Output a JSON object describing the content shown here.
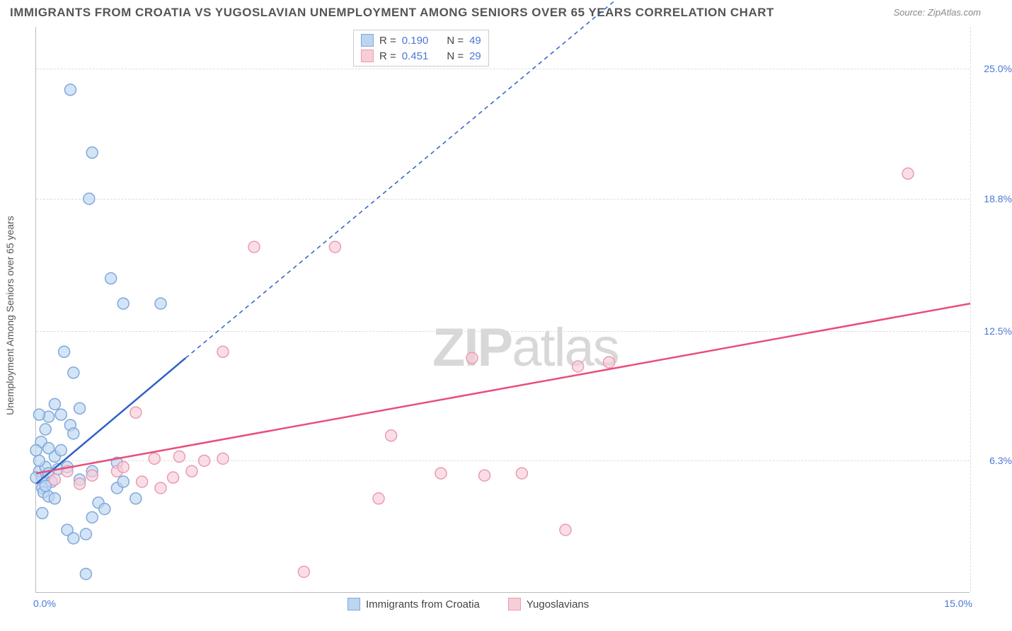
{
  "title": "IMMIGRANTS FROM CROATIA VS YUGOSLAVIAN UNEMPLOYMENT AMONG SENIORS OVER 65 YEARS CORRELATION CHART",
  "source": "Source: ZipAtlas.com",
  "watermark_bold": "ZIP",
  "watermark_light": "atlas",
  "ylabel": "Unemployment Among Seniors over 65 years",
  "chart": {
    "type": "scatter",
    "background_color": "#ffffff",
    "grid_color": "#dddddd",
    "axis_color": "#bbbbbb",
    "xlim": [
      0,
      15
    ],
    "ylim": [
      0,
      27
    ],
    "y_gridlines": [
      6.3,
      12.5,
      18.8,
      25.0
    ],
    "y_tick_labels": [
      "6.3%",
      "12.5%",
      "18.8%",
      "25.0%"
    ],
    "x_gridlines": [
      15.0
    ],
    "x_tick_labels": {
      "left": "0.0%",
      "right": "15.0%"
    },
    "marker_radius": 8,
    "marker_stroke_width": 1.5,
    "trend_solid_width": 2.5,
    "trend_dash_width": 1.5,
    "trend_dash_pattern": "6,5",
    "label_fontsize": 14,
    "tick_color": "#4a78d6"
  },
  "series": [
    {
      "name": "Immigrants from Croatia",
      "fill": "#bcd5f0",
      "stroke": "#7fa8dd",
      "trend_color": "#2f5fc9",
      "R": "0.190",
      "N": "49",
      "trend": {
        "x1": 0,
        "y1": 5.2,
        "x2_solid": 2.4,
        "y2_solid": 11.2,
        "x2_dash": 10.0,
        "y2_dash": 30.0
      },
      "points": [
        [
          0.05,
          5.8
        ],
        [
          0.1,
          5.5
        ],
        [
          0.15,
          6.0
        ],
        [
          0.1,
          5.0
        ],
        [
          0.2,
          5.7
        ],
        [
          0.12,
          4.8
        ],
        [
          0.3,
          6.5
        ],
        [
          0.08,
          7.2
        ],
        [
          0.05,
          6.3
        ],
        [
          0.25,
          5.3
        ],
        [
          0.2,
          4.6
        ],
        [
          0.0,
          5.5
        ],
        [
          0.35,
          5.9
        ],
        [
          0.4,
          8.5
        ],
        [
          0.55,
          8.0
        ],
        [
          0.6,
          7.6
        ],
        [
          0.7,
          8.8
        ],
        [
          0.6,
          10.5
        ],
        [
          0.45,
          11.5
        ],
        [
          0.85,
          18.8
        ],
        [
          0.55,
          24.0
        ],
        [
          0.9,
          21.0
        ],
        [
          1.2,
          15.0
        ],
        [
          1.4,
          13.8
        ],
        [
          2.0,
          13.8
        ],
        [
          0.3,
          9.0
        ],
        [
          0.4,
          6.8
        ],
        [
          0.15,
          7.8
        ],
        [
          0.2,
          8.4
        ],
        [
          0.5,
          6.0
        ],
        [
          0.7,
          5.4
        ],
        [
          0.9,
          5.8
        ],
        [
          1.0,
          4.3
        ],
        [
          1.1,
          4.0
        ],
        [
          1.3,
          6.2
        ],
        [
          1.3,
          5.0
        ],
        [
          1.4,
          5.3
        ],
        [
          0.5,
          3.0
        ],
        [
          0.6,
          2.6
        ],
        [
          0.8,
          2.8
        ],
        [
          0.8,
          0.9
        ],
        [
          0.9,
          3.6
        ],
        [
          0.3,
          4.5
        ],
        [
          1.6,
          4.5
        ],
        [
          0.1,
          3.8
        ],
        [
          0.0,
          6.8
        ],
        [
          0.05,
          8.5
        ],
        [
          0.2,
          6.9
        ],
        [
          0.15,
          5.1
        ]
      ]
    },
    {
      "name": "Yugoslavians",
      "fill": "#f7cdd8",
      "stroke": "#ea9bb1",
      "trend_color": "#e84f7a",
      "R": "0.451",
      "N": "29",
      "trend": {
        "x1": 0,
        "y1": 5.7,
        "x2_solid": 15.0,
        "y2_solid": 13.8,
        "x2_dash": 15.0,
        "y2_dash": 13.8
      },
      "points": [
        [
          0.3,
          5.4
        ],
        [
          0.5,
          5.8
        ],
        [
          0.7,
          5.2
        ],
        [
          0.9,
          5.6
        ],
        [
          1.3,
          5.8
        ],
        [
          1.4,
          6.0
        ],
        [
          1.6,
          8.6
        ],
        [
          1.7,
          5.3
        ],
        [
          1.9,
          6.4
        ],
        [
          2.0,
          5.0
        ],
        [
          2.2,
          5.5
        ],
        [
          2.3,
          6.5
        ],
        [
          2.5,
          5.8
        ],
        [
          2.7,
          6.3
        ],
        [
          3.0,
          11.5
        ],
        [
          3.0,
          6.4
        ],
        [
          3.5,
          16.5
        ],
        [
          4.8,
          16.5
        ],
        [
          4.3,
          1.0
        ],
        [
          5.5,
          4.5
        ],
        [
          5.7,
          7.5
        ],
        [
          6.5,
          5.7
        ],
        [
          7.0,
          11.2
        ],
        [
          7.2,
          5.6
        ],
        [
          7.8,
          5.7
        ],
        [
          8.5,
          3.0
        ],
        [
          8.7,
          10.8
        ],
        [
          9.2,
          11.0
        ],
        [
          14.0,
          20.0
        ]
      ]
    }
  ],
  "legend": {
    "R_label": "R =",
    "N_label": "N ="
  }
}
